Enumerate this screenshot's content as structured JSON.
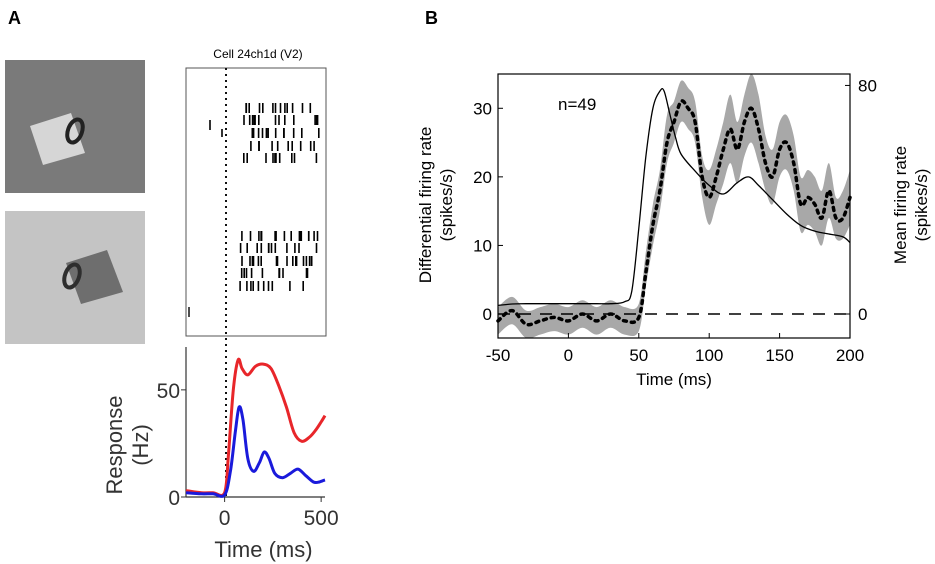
{
  "panel_a": {
    "letter": "A",
    "raster_title": "Cell 24ch1d (V2)",
    "stimulus_top": {
      "square_color": "#d6d6d6",
      "background_color": "#7a7a7a"
    },
    "stimulus_bottom": {
      "square_color": "#6e6e6e",
      "background_color": "#c4c4c4"
    }
  },
  "panel_b": {
    "letter": "B",
    "annotation": "n=49"
  },
  "chart_data": [
    {
      "type": "line",
      "id": "panel-a-response",
      "title": "",
      "xlabel": "Time (ms)",
      "ylabel": "Response (Hz)",
      "xlim": [
        -200,
        520
      ],
      "ylim": [
        0,
        70
      ],
      "xticks": [
        0,
        500
      ],
      "yticks": [
        0,
        50
      ],
      "xtick_labels": [
        "0",
        "500"
      ],
      "ytick_labels": [
        "0",
        "50"
      ],
      "stimulus_onset_ms": 0,
      "series": [
        {
          "name": "red",
          "color": "#e8262a",
          "x": [
            -200,
            -120,
            -60,
            0,
            20,
            45,
            70,
            90,
            120,
            160,
            200,
            240,
            280,
            320,
            360,
            400,
            440,
            470,
            500,
            520
          ],
          "y": [
            3,
            2,
            2,
            2,
            20,
            50,
            64,
            60,
            57,
            61,
            62,
            60,
            52,
            42,
            30,
            26,
            28,
            31,
            35,
            38
          ]
        },
        {
          "name": "blue",
          "color": "#1a1adb",
          "x": [
            -200,
            -120,
            -60,
            0,
            30,
            55,
            75,
            95,
            120,
            150,
            180,
            205,
            230,
            260,
            300,
            340,
            380,
            420,
            460,
            490,
            520
          ],
          "y": [
            2,
            1.5,
            1.5,
            1,
            12,
            30,
            42,
            36,
            18,
            12,
            16,
            21,
            18,
            11,
            9,
            11,
            13,
            10,
            7,
            7,
            8
          ]
        }
      ]
    },
    {
      "type": "line",
      "id": "panel-b-population",
      "title": "",
      "xlabel": "Time (ms)",
      "ylabel": "Differential firing rate (spikes/s)",
      "ylabel_lines": [
        "Differential firing rate",
        "(spikes/s)"
      ],
      "y2label": "Mean firing rate (spikes/s)",
      "y2label_lines": [
        "Mean firing rate",
        "(spikes/s)"
      ],
      "xlim": [
        -50,
        200
      ],
      "ylim": [
        -3.5,
        35
      ],
      "y2lim": [
        -8.4,
        84
      ],
      "xticks": [
        -50,
        0,
        50,
        100,
        150,
        200
      ],
      "xtick_labels": [
        "-50",
        "0",
        "50",
        "100",
        "150",
        "200"
      ],
      "yticks": [
        0,
        10,
        20,
        30
      ],
      "ytick_labels": [
        "0",
        "10",
        "20",
        "30"
      ],
      "y2ticks": [
        0,
        80
      ],
      "y2tick_labels": [
        "0",
        "80"
      ],
      "zero_line": 0,
      "series": [
        {
          "name": "mean firing rate",
          "axis": "right",
          "style": "solid",
          "x": [
            -50,
            -40,
            -30,
            -20,
            -10,
            0,
            10,
            20,
            30,
            40,
            45,
            50,
            55,
            60,
            65,
            68,
            72,
            76,
            80,
            90,
            100,
            110,
            120,
            128,
            135,
            145,
            155,
            165,
            175,
            185,
            195,
            200
          ],
          "y": [
            3,
            3.5,
            3.6,
            3.6,
            3.6,
            3.6,
            3.6,
            3.6,
            3.6,
            4.3,
            8,
            30,
            55,
            72,
            78,
            78,
            70,
            62,
            56,
            50,
            45,
            42,
            46,
            48,
            45,
            40,
            35,
            31,
            29,
            28,
            27,
            25
          ]
        },
        {
          "name": "differential firing rate",
          "axis": "left",
          "style": "dotted",
          "x": [
            -50,
            -40,
            -30,
            -20,
            -10,
            0,
            10,
            20,
            30,
            40,
            50,
            55,
            60,
            65,
            70,
            75,
            80,
            85,
            90,
            95,
            100,
            105,
            110,
            115,
            120,
            125,
            130,
            135,
            140,
            145,
            150,
            155,
            160,
            165,
            170,
            175,
            180,
            185,
            190,
            195,
            200
          ],
          "y": [
            -1,
            0.5,
            -1.5,
            -1,
            -0.5,
            -1,
            0,
            -1,
            0,
            -1,
            -0.5,
            6,
            13,
            18,
            25,
            28,
            31,
            30,
            28,
            20,
            17,
            20,
            24,
            27,
            24,
            28,
            30,
            27,
            22,
            20,
            24,
            25,
            22,
            16,
            17,
            16,
            14,
            18,
            14,
            14,
            17
          ]
        },
        {
          "name": "differential firing rate sem",
          "axis": "left",
          "style": "band",
          "x": [
            -50,
            -40,
            -30,
            -20,
            -10,
            0,
            10,
            20,
            30,
            40,
            50,
            55,
            60,
            65,
            70,
            75,
            80,
            85,
            90,
            95,
            100,
            105,
            110,
            115,
            120,
            125,
            130,
            135,
            140,
            145,
            150,
            155,
            160,
            165,
            170,
            175,
            180,
            185,
            190,
            195,
            200
          ],
          "y_lower": [
            -3,
            -1.5,
            -3.5,
            -3,
            -2.5,
            -3,
            -2,
            -3,
            -2,
            -3,
            -2.5,
            4,
            10,
            15,
            22,
            25,
            28,
            27,
            25,
            17,
            13,
            16,
            19,
            22,
            19,
            23,
            25,
            22,
            18,
            16,
            20,
            21,
            18,
            12,
            13,
            12,
            10,
            14,
            11,
            11,
            13
          ],
          "y_upper": [
            1,
            2.5,
            0.5,
            1,
            1.5,
            1,
            2,
            1,
            2,
            1,
            1.5,
            9,
            16,
            21,
            29,
            31,
            34,
            33,
            31,
            23,
            21,
            24,
            28,
            32,
            28,
            32,
            35,
            32,
            26,
            24,
            28,
            29,
            26,
            20,
            21,
            20,
            18,
            22,
            17,
            18,
            21
          ]
        }
      ]
    }
  ]
}
